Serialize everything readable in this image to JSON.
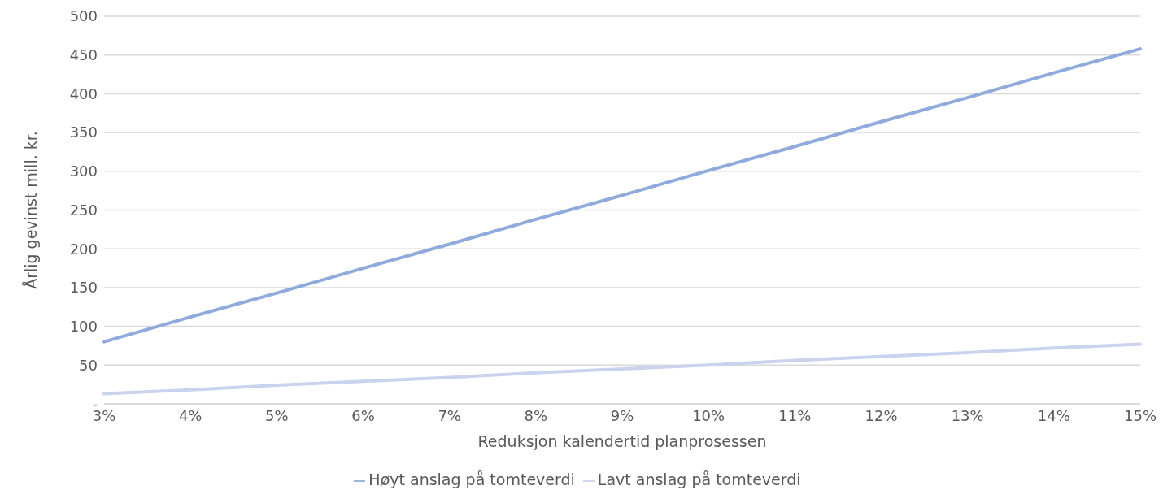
{
  "chart_data": {
    "type": "line",
    "xlabel": "Reduksjon kalendertid planprosessen",
    "ylabel": "Årlig gevinst mill. kr.",
    "categories": [
      "3%",
      "4%",
      "5%",
      "6%",
      "7%",
      "8%",
      "9%",
      "10%",
      "11%",
      "12%",
      "13%",
      "14%",
      "15%"
    ],
    "series": [
      {
        "name": "Lavt anslag på tomteverdi",
        "color": "#c9d3ee",
        "values": [
          13,
          18,
          24,
          29,
          34,
          40,
          45,
          50,
          56,
          61,
          66,
          72,
          77
        ]
      },
      {
        "name": "Høyt anslag på tomteverdi",
        "color": "#8faadc",
        "values": [
          80,
          112,
          143,
          175,
          206,
          238,
          269,
          301,
          332,
          364,
          395,
          427,
          458
        ]
      }
    ],
    "ylim": [
      0,
      500
    ],
    "yticks": [
      {
        "value": 0,
        "label": "-"
      },
      50,
      100,
      150,
      200,
      250,
      300,
      350,
      400,
      450,
      500
    ],
    "grid": "y",
    "legend": "bottom",
    "marker": "none",
    "line_style": "solid"
  }
}
